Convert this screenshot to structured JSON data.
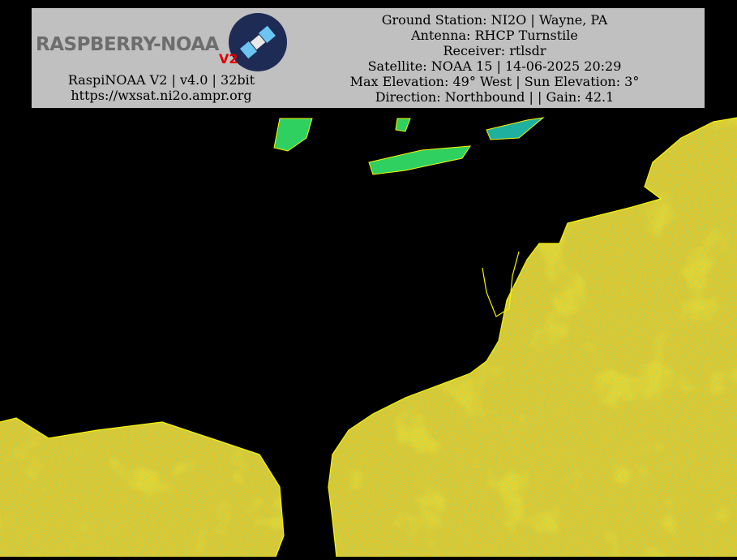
{
  "header": {
    "logo_text": "RASPBERRY-NOAA",
    "logo_badge": "V2",
    "left_lines": [
      "RaspiNOAA V2 | v4.0 | 32bit",
      "https://wxsat.ni2o.ampr.org"
    ],
    "right_lines": [
      "Ground Station: NI2O | Wayne, PA",
      "Antenna: RHCP Turnstile",
      "Receiver: rtlsdr",
      "Satellite: NOAA 15 | 14-06-2025 20:29",
      "Max Elevation: 49° West | Sun Elevation: 3°",
      "Direction: Northbound | | Gain: 42.1"
    ]
  }
}
